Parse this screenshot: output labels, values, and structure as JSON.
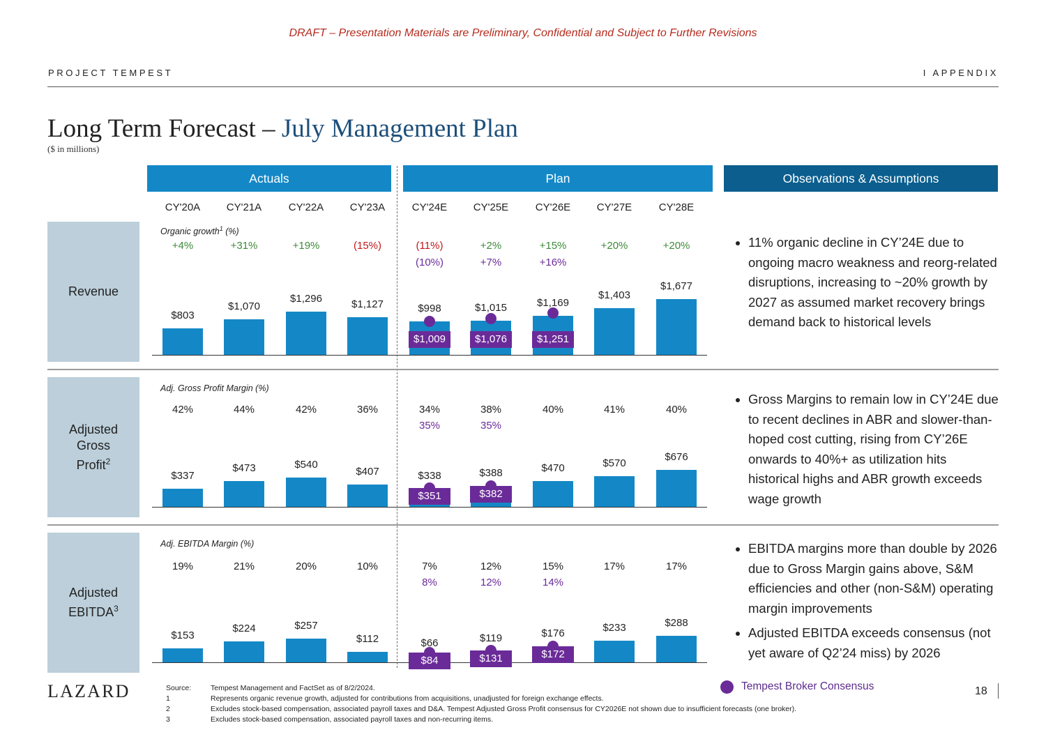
{
  "header": {
    "draft_notice": "DRAFT – Presentation Materials are Preliminary, Confidential and Subject to Further Revisions",
    "project": "PROJECT TEMPEST",
    "section": "I    APPENDIX"
  },
  "title": {
    "prefix": "Long Term Forecast – ",
    "highlight": "July Management Plan",
    "units": "($ in millions)"
  },
  "section_headers": {
    "actuals": "Actuals",
    "plan": "Plan",
    "observations": "Observations & Assumptions"
  },
  "colors": {
    "bar": "#1488c7",
    "consensus": "#6a2b99",
    "positive": "#3f8a3a",
    "negative": "#c0181c",
    "secondary_pct": "#6a2b99"
  },
  "chart_data": {
    "type": "bar",
    "categories": [
      "CY'20A",
      "CY'21A",
      "CY'22A",
      "CY'23A",
      "CY'24E",
      "CY'25E",
      "CY'26E",
      "CY'27E",
      "CY'28E"
    ],
    "panels": [
      {
        "label": "Revenue",
        "metric_name": "Organic growth",
        "metric_sup": "1",
        "metric_unit": " (%)",
        "pct_primary": [
          "+4%",
          "+31%",
          "+19%",
          "(15%)",
          "(11%)",
          "+2%",
          "+15%",
          "+20%",
          "+20%"
        ],
        "pct_secondary": [
          "",
          "",
          "",
          "",
          "(10%)",
          "+7%",
          "+16%",
          "",
          ""
        ],
        "values": [
          803,
          1070,
          1296,
          1127,
          998,
          1015,
          1169,
          1403,
          1677
        ],
        "value_labels": [
          "$803",
          "$1,070",
          "$1,296",
          "$1,127",
          "$998",
          "$1,015",
          "$1,169",
          "$1,403",
          "$1,677"
        ],
        "consensus": [
          null,
          null,
          null,
          null,
          1009,
          1076,
          1251,
          null,
          null
        ],
        "consensus_labels": [
          "",
          "",
          "",
          "",
          "$1,009",
          "$1,076",
          "$1,251",
          "",
          ""
        ]
      },
      {
        "label": "Adjusted Gross Profit",
        "label_sup": "2",
        "metric_name": "Adj. Gross Profit Margin",
        "metric_sup": "",
        "metric_unit": " (%)",
        "pct_primary": [
          "42%",
          "44%",
          "42%",
          "36%",
          "34%",
          "38%",
          "40%",
          "41%",
          "40%"
        ],
        "pct_secondary": [
          "",
          "",
          "",
          "",
          "35%",
          "35%",
          "",
          "",
          ""
        ],
        "values": [
          337,
          473,
          540,
          407,
          338,
          388,
          470,
          570,
          676
        ],
        "value_labels": [
          "$337",
          "$473",
          "$540",
          "$407",
          "$338",
          "$388",
          "$470",
          "$570",
          "$676"
        ],
        "consensus": [
          null,
          null,
          null,
          null,
          351,
          382,
          null,
          null,
          null
        ],
        "consensus_labels": [
          "",
          "",
          "",
          "",
          "$351",
          "$382",
          "",
          "",
          ""
        ]
      },
      {
        "label": "Adjusted EBITDA",
        "label_sup": "3",
        "metric_name": "Adj. EBITDA Margin",
        "metric_sup": "",
        "metric_unit": " (%)",
        "pct_primary": [
          "19%",
          "21%",
          "20%",
          "10%",
          "7%",
          "12%",
          "15%",
          "17%",
          "17%"
        ],
        "pct_secondary": [
          "",
          "",
          "",
          "",
          "8%",
          "12%",
          "14%",
          "",
          ""
        ],
        "values": [
          153,
          224,
          257,
          112,
          66,
          119,
          176,
          233,
          288
        ],
        "value_labels": [
          "$153",
          "$224",
          "$257",
          "$112",
          "$66",
          "$119",
          "$176",
          "$233",
          "$288"
        ],
        "consensus": [
          null,
          null,
          null,
          null,
          84,
          131,
          172,
          null,
          null
        ],
        "consensus_labels": [
          "",
          "",
          "",
          "",
          "$84",
          "$131",
          "$172",
          "",
          ""
        ]
      }
    ],
    "legend": {
      "consensus": "Tempest Broker Consensus",
      "placement": "bottom-right"
    }
  },
  "observations": [
    [
      "11% organic decline in CY’24E due to ongoing macro weakness and reorg-related disruptions, increasing to ~20% growth by 2027 as assumed market recovery brings demand back to historical levels"
    ],
    [
      "Gross Margins to remain low in CY’24E due to recent declines in ABR and slower-than-hoped cost cutting, rising from CY’26E onwards to 40%+ as utilization hits historical highs and ABR growth exceeds wage growth"
    ],
    [
      "EBITDA margins more than double by 2026 due to Gross Margin gains above, S&M efficiencies and other (non-S&M) operating margin improvements",
      "Adjusted EBITDA exceeds consensus (not yet aware of Q2’24 miss) by 2026"
    ]
  ],
  "footer": {
    "logo": "LAZARD",
    "page_number": "18",
    "notes": [
      {
        "key": "Source:",
        "text": "Tempest Management and FactSet as of 8/2/2024."
      },
      {
        "key": "1",
        "text": "Represents organic revenue growth, adjusted for contributions from acquisitions, unadjusted for foreign exchange effects."
      },
      {
        "key": "2",
        "text": "Excludes stock-based compensation, associated payroll taxes and D&A. Tempest Adjusted Gross Profit consensus for CY2026E not shown due to insufficient forecasts (one broker)."
      },
      {
        "key": "3",
        "text": "Excludes stock-based compensation, associated payroll taxes and non-recurring items."
      }
    ]
  }
}
